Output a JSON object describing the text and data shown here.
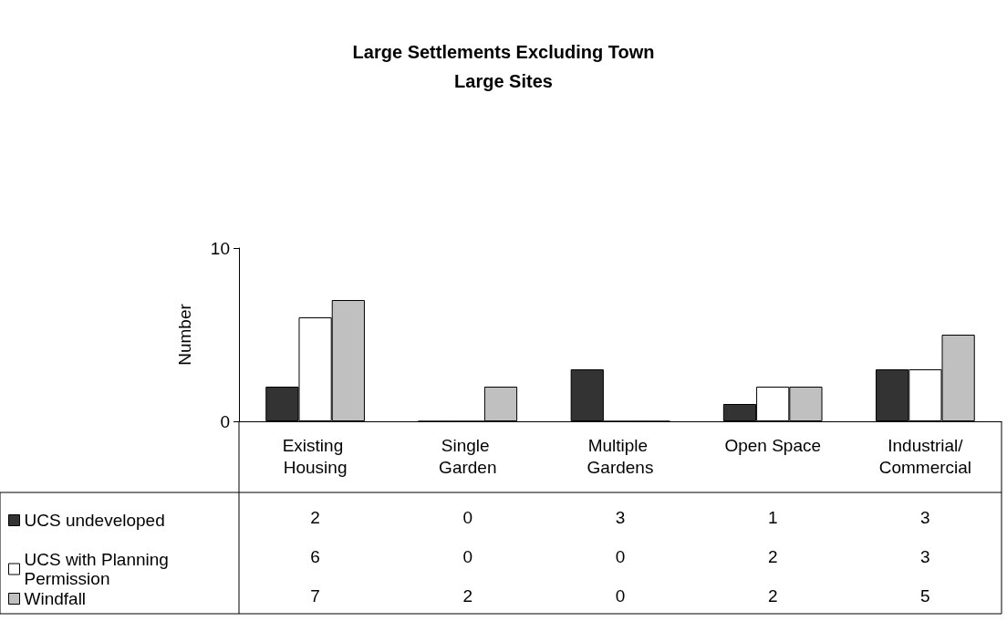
{
  "chart_data": {
    "type": "bar",
    "title": "Large Settlements Excluding Town",
    "subtitle": "Large Sites",
    "ylabel": "Number",
    "categories": [
      "Existing Housing",
      "Single Garden",
      "Multiple Gardens",
      "Open Space",
      "Industrial/Commercial"
    ],
    "series": [
      {
        "name": "UCS undeveloped",
        "color": "#333333",
        "values": [
          2,
          0,
          3,
          1,
          3
        ]
      },
      {
        "name": "UCS with Planning Permission",
        "color": "#ffffff",
        "values": [
          6,
          0,
          0,
          2,
          3
        ]
      },
      {
        "name": "Windfall",
        "color": "#c0c0c0",
        "values": [
          7,
          2,
          0,
          2,
          5
        ]
      }
    ],
    "ylim": [
      0,
      10
    ],
    "yticks": [
      0,
      10
    ],
    "grid": false,
    "legend": "bottom",
    "data_labels": true
  }
}
